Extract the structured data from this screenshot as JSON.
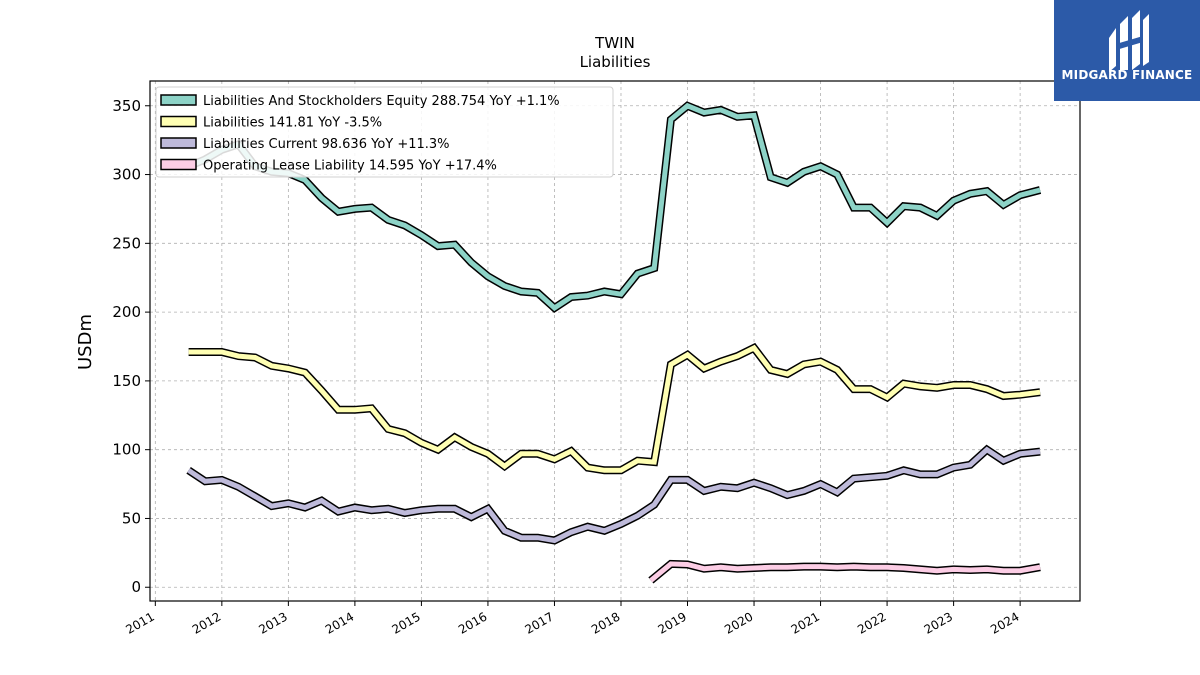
{
  "chart_data": {
    "type": "line",
    "title": "TWIN",
    "subtitle": "Liabilities",
    "ylabel": "USDm",
    "xlabel": "",
    "ylim": [
      -10,
      368
    ],
    "xlim": [
      2010.92,
      2024.9
    ],
    "yticks": [
      0,
      50,
      100,
      150,
      200,
      250,
      300,
      350
    ],
    "xticks": [
      "2011",
      "2012",
      "2013",
      "2014",
      "2015",
      "2016",
      "2017",
      "2018",
      "2019",
      "2020",
      "2021",
      "2022",
      "2023",
      "2024"
    ],
    "grid": true,
    "legend_position": "top-left",
    "series": [
      {
        "name": "Liabilities And Stockholders Equity",
        "legend": "Liabilities And Stockholders Equity  288.754 YoY +1.1%",
        "color": "#8dd3c7",
        "x": [
          2011.5,
          2011.75,
          2012.0,
          2012.25,
          2012.5,
          2012.75,
          2013.0,
          2013.25,
          2013.5,
          2013.75,
          2014.0,
          2014.25,
          2014.5,
          2014.75,
          2015.0,
          2015.25,
          2015.5,
          2015.75,
          2016.0,
          2016.25,
          2016.5,
          2016.75,
          2017.0,
          2017.25,
          2017.5,
          2017.75,
          2018.0,
          2018.25,
          2018.5,
          2018.75,
          2019.0,
          2019.25,
          2019.5,
          2019.75,
          2020.0,
          2020.25,
          2020.5,
          2020.75,
          2021.0,
          2021.25,
          2021.5,
          2021.75,
          2022.0,
          2022.25,
          2022.5,
          2022.75,
          2023.0,
          2023.25,
          2023.5,
          2023.75,
          2024.0,
          2024.3
        ],
        "y": [
          306,
          311,
          318,
          322,
          306,
          302,
          301,
          296,
          283,
          273,
          275,
          276,
          267,
          263,
          256,
          248,
          249,
          236,
          226,
          219,
          215,
          214,
          203,
          211,
          212,
          215,
          213,
          228,
          232,
          340,
          350,
          345,
          347,
          342,
          343,
          298,
          294,
          302,
          306,
          300,
          276,
          276,
          265,
          277,
          276,
          270,
          281,
          286,
          288,
          278,
          285,
          288.754
        ]
      },
      {
        "name": "Liabilities",
        "legend": "Liabilities  141.81 YoY -3.5%",
        "color": "#ffffb3",
        "x": [
          2011.5,
          2011.75,
          2012.0,
          2012.25,
          2012.5,
          2012.75,
          2013.0,
          2013.25,
          2013.5,
          2013.75,
          2014.0,
          2014.25,
          2014.5,
          2014.75,
          2015.0,
          2015.25,
          2015.5,
          2015.75,
          2016.0,
          2016.25,
          2016.5,
          2016.75,
          2017.0,
          2017.25,
          2017.5,
          2017.75,
          2018.0,
          2018.25,
          2018.5,
          2018.75,
          2019.0,
          2019.25,
          2019.5,
          2019.75,
          2020.0,
          2020.25,
          2020.5,
          2020.75,
          2021.0,
          2021.25,
          2021.5,
          2021.75,
          2022.0,
          2022.25,
          2022.5,
          2022.75,
          2023.0,
          2023.25,
          2023.5,
          2023.75,
          2024.0,
          2024.3
        ],
        "y": [
          171,
          171,
          171,
          168,
          167,
          161,
          159,
          156,
          143,
          129,
          129,
          130,
          115,
          112,
          105,
          100,
          109,
          102,
          97,
          88,
          97,
          97,
          93,
          99,
          87,
          85,
          85,
          92,
          91,
          162,
          169,
          159,
          164,
          168,
          174,
          158,
          155,
          162,
          164,
          158,
          144,
          144,
          138,
          148,
          146,
          145,
          147,
          147,
          144,
          139,
          140,
          141.81
        ]
      },
      {
        "name": "Liabilities Current",
        "legend": "Liabilities Current  98.636 YoY +11.3%",
        "color": "#bebada",
        "x": [
          2011.5,
          2011.75,
          2012.0,
          2012.25,
          2012.5,
          2012.75,
          2013.0,
          2013.25,
          2013.5,
          2013.75,
          2014.0,
          2014.25,
          2014.5,
          2014.75,
          2015.0,
          2015.25,
          2015.5,
          2015.75,
          2016.0,
          2016.25,
          2016.5,
          2016.75,
          2017.0,
          2017.25,
          2017.5,
          2017.75,
          2018.0,
          2018.25,
          2018.5,
          2018.75,
          2019.0,
          2019.25,
          2019.5,
          2019.75,
          2020.0,
          2020.25,
          2020.5,
          2020.75,
          2021.0,
          2021.25,
          2021.5,
          2021.75,
          2022.0,
          2022.25,
          2022.5,
          2022.75,
          2023.0,
          2023.25,
          2023.5,
          2023.75,
          2024.0,
          2024.3
        ],
        "y": [
          85,
          77,
          78,
          73,
          66,
          59,
          61,
          58,
          63,
          55,
          58,
          56,
          57,
          54,
          56,
          57,
          57,
          51,
          57,
          41,
          36,
          36,
          34,
          40,
          44,
          41,
          46,
          52,
          60,
          78,
          78,
          70,
          73,
          72,
          76,
          72,
          67,
          70,
          75,
          69,
          79,
          80,
          81,
          85,
          82,
          82,
          87,
          89,
          100,
          92,
          97,
          98.636
        ]
      },
      {
        "name": "Operating Lease Liability",
        "legend": "Operating Lease Liability  14.595 YoY +17.4%",
        "color": "#fccde5",
        "x": [
          2018.45,
          2018.75,
          2019.0,
          2019.25,
          2019.5,
          2019.75,
          2020.0,
          2020.25,
          2020.5,
          2020.75,
          2021.0,
          2021.25,
          2021.5,
          2021.75,
          2022.0,
          2022.25,
          2022.5,
          2022.75,
          2023.0,
          2023.25,
          2023.5,
          2023.75,
          2024.0,
          2024.3
        ],
        "y": [
          5,
          17,
          16.5,
          13.5,
          14.5,
          13.5,
          14,
          14.5,
          14.5,
          15,
          15,
          14.5,
          15,
          14.5,
          14.5,
          14,
          13,
          12,
          13,
          12.5,
          13,
          12,
          12,
          14.595
        ]
      }
    ]
  },
  "logo": {
    "text": "MIDGARD FINANCE"
  }
}
